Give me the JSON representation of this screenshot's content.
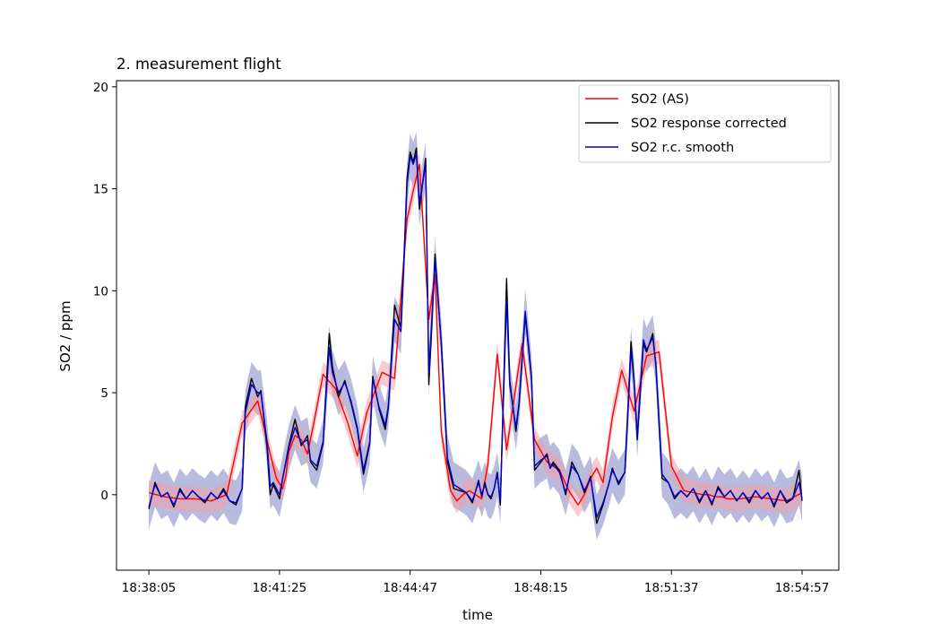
{
  "chart_data": {
    "type": "line",
    "title": "2. measurement flight",
    "xlabel": "time",
    "ylabel": "SO2 / ppm",
    "x_ticks": [
      "18:38:05",
      "18:41:25",
      "18:44:47",
      "18:48:15",
      "18:51:37",
      "18:54:57"
    ],
    "y_ticks": [
      0,
      5,
      10,
      15,
      20
    ],
    "xlim": [
      -52,
      1109
    ],
    "ylim": [
      -3.7,
      20.3
    ],
    "x_unit": "seconds after 18:38:05",
    "x_range_data": [
      0,
      1050
    ],
    "legend_position": "top-right",
    "grid": false,
    "series": [
      {
        "name": "SO2 (AS)",
        "color": "#ff0000",
        "band_color": "#f0a0a8",
        "band_halfwidth": 0.6,
        "x": [
          0,
          25,
          50,
          75,
          100,
          125,
          150,
          175,
          195,
          205,
          215,
          220,
          225,
          235,
          245,
          255,
          265,
          280,
          300,
          320,
          335,
          350,
          375,
          395,
          415,
          425,
          435,
          450,
          460,
          470,
          485,
          495,
          505,
          515,
          525,
          535,
          545,
          560,
          575,
          600,
          620,
          640,
          660,
          675,
          690,
          700,
          710,
          720,
          730,
          745,
          760,
          780,
          800,
          820,
          840,
          860,
          875,
          890,
          900,
          910,
          920,
          930,
          950,
          975,
          1000,
          1025,
          1050
        ],
        "values": [
          0.1,
          -0.1,
          -0.2,
          -0.2,
          -0.3,
          0.0,
          3.5,
          4.6,
          2.0,
          0.8,
          0.3,
          0.9,
          2.1,
          2.9,
          2.7,
          2.0,
          3.5,
          5.9,
          5.2,
          3.5,
          1.9,
          4.0,
          6.0,
          5.7,
          13.5,
          14.9,
          16.2,
          8.6,
          10.8,
          3.1,
          0.2,
          -0.3,
          0.0,
          0.2,
          0.0,
          -0.2,
          1.5,
          6.9,
          2.2,
          7.4,
          2.7,
          1.6,
          1.2,
          0.2,
          -0.5,
          0.0,
          0.8,
          1.3,
          0.6,
          3.8,
          6.1,
          4.1,
          6.8,
          7.0,
          1.4,
          0.2,
          0.1,
          0.0,
          0.0,
          -0.1,
          -0.1,
          -0.2,
          -0.2,
          -0.1,
          -0.2,
          -0.3,
          0.1
        ]
      },
      {
        "name": "SO2 response corrected",
        "color": "#000000",
        "x": [
          0,
          10,
          20,
          30,
          40,
          50,
          60,
          70,
          80,
          90,
          100,
          110,
          120,
          130,
          140,
          150,
          155,
          165,
          175,
          180,
          190,
          195,
          200,
          210,
          215,
          225,
          235,
          245,
          255,
          260,
          270,
          280,
          290,
          295,
          305,
          315,
          325,
          335,
          345,
          355,
          360,
          370,
          380,
          385,
          395,
          405,
          410,
          415,
          420,
          425,
          430,
          435,
          445,
          450,
          455,
          460,
          470,
          480,
          490,
          500,
          510,
          520,
          530,
          535,
          540,
          545,
          550,
          555,
          560,
          565,
          575,
          580,
          590,
          595,
          605,
          615,
          620,
          630,
          640,
          645,
          650,
          660,
          670,
          680,
          690,
          700,
          710,
          720,
          730,
          740,
          745,
          755,
          765,
          770,
          775,
          780,
          785,
          795,
          800,
          810,
          815,
          825,
          835,
          845,
          855,
          865,
          875,
          885,
          895,
          905,
          915,
          925,
          935,
          945,
          955,
          965,
          975,
          985,
          995,
          1005,
          1015,
          1025,
          1035,
          1045,
          1050
        ],
        "values": [
          -0.7,
          0.6,
          -0.1,
          0.1,
          -0.6,
          0.3,
          -0.2,
          0.2,
          -0.1,
          -0.4,
          0.1,
          -0.2,
          0.3,
          -0.3,
          -0.5,
          0.3,
          4.3,
          5.7,
          4.8,
          5.1,
          2.3,
          0.0,
          0.5,
          -0.2,
          0.8,
          2.4,
          3.7,
          2.4,
          2.9,
          1.6,
          1.2,
          2.5,
          7.9,
          6.3,
          4.8,
          5.6,
          4.5,
          3.2,
          1.0,
          2.5,
          5.8,
          4.2,
          3.2,
          4.3,
          9.3,
          8.2,
          11.5,
          15.5,
          16.8,
          16.3,
          17.0,
          14.0,
          16.5,
          5.4,
          8.4,
          11.8,
          7.4,
          1.6,
          0.3,
          0.2,
          0.1,
          -0.4,
          0.7,
          -0.1,
          0.6,
          0.0,
          -0.2,
          0.3,
          1.1,
          -0.5,
          10.6,
          5.6,
          3.1,
          4.4,
          8.8,
          5.7,
          1.2,
          1.6,
          2.0,
          1.3,
          1.6,
          1.2,
          0.0,
          1.6,
          1.0,
          0.1,
          0.9,
          -1.4,
          -0.5,
          0.6,
          1.3,
          0.5,
          1.1,
          4.2,
          7.5,
          5.6,
          2.7,
          7.4,
          7.0,
          7.9,
          6.3,
          0.8,
          0.6,
          -0.2,
          0.2,
          -0.1,
          0.3,
          -0.4,
          0.2,
          -0.5,
          0.4,
          -0.1,
          0.2,
          -0.3,
          0.1,
          -0.4,
          0.2,
          -0.2,
          0.1,
          -0.6,
          0.2,
          -0.4,
          -0.2,
          1.2,
          -0.3
        ]
      },
      {
        "name": "SO2 r.c. smooth",
        "color": "#0000cc",
        "band_color": "#8c91c8",
        "band_halfwidth": 1.1,
        "x": [
          0,
          10,
          20,
          30,
          40,
          50,
          60,
          70,
          80,
          90,
          100,
          110,
          120,
          130,
          140,
          150,
          155,
          165,
          175,
          180,
          190,
          195,
          200,
          210,
          215,
          225,
          235,
          245,
          255,
          260,
          270,
          280,
          290,
          295,
          305,
          315,
          325,
          335,
          345,
          355,
          360,
          370,
          380,
          385,
          395,
          405,
          410,
          415,
          420,
          425,
          430,
          435,
          445,
          450,
          455,
          460,
          470,
          480,
          490,
          500,
          510,
          520,
          530,
          535,
          540,
          545,
          550,
          555,
          560,
          565,
          575,
          580,
          590,
          595,
          605,
          615,
          620,
          630,
          640,
          645,
          650,
          660,
          670,
          680,
          690,
          700,
          710,
          720,
          730,
          740,
          745,
          755,
          765,
          770,
          775,
          780,
          785,
          795,
          800,
          810,
          815,
          825,
          835,
          845,
          855,
          865,
          875,
          885,
          895,
          905,
          915,
          925,
          935,
          945,
          955,
          965,
          975,
          985,
          995,
          1005,
          1015,
          1025,
          1035,
          1045,
          1050
        ],
        "values": [
          -0.6,
          0.5,
          -0.1,
          0.1,
          -0.5,
          0.2,
          -0.2,
          0.2,
          -0.1,
          -0.3,
          0.1,
          -0.2,
          0.2,
          -0.3,
          -0.4,
          0.3,
          4.0,
          5.4,
          5.0,
          5.0,
          2.6,
          0.4,
          0.6,
          0.0,
          0.8,
          2.3,
          3.3,
          2.5,
          2.7,
          1.7,
          1.4,
          2.6,
          7.2,
          6.0,
          5.0,
          5.5,
          4.6,
          3.3,
          1.2,
          2.6,
          5.7,
          4.3,
          3.4,
          4.4,
          8.6,
          8.0,
          11.3,
          15.2,
          16.6,
          16.2,
          16.7,
          14.3,
          16.2,
          6.0,
          8.7,
          11.5,
          7.5,
          1.8,
          0.5,
          0.3,
          0.1,
          -0.3,
          0.6,
          0.0,
          0.5,
          0.0,
          -0.1,
          0.3,
          1.0,
          -0.3,
          9.6,
          5.4,
          3.3,
          4.5,
          9.0,
          5.8,
          1.4,
          1.7,
          1.9,
          1.3,
          1.5,
          1.1,
          0.1,
          1.4,
          1.0,
          0.2,
          0.8,
          -1.1,
          -0.4,
          0.6,
          1.2,
          0.6,
          1.1,
          4.0,
          7.1,
          5.5,
          2.9,
          7.6,
          7.1,
          7.7,
          6.4,
          1.0,
          0.6,
          -0.1,
          0.2,
          -0.1,
          0.3,
          -0.3,
          0.2,
          -0.4,
          0.3,
          -0.1,
          0.2,
          -0.3,
          0.1,
          -0.3,
          0.2,
          -0.2,
          0.1,
          -0.5,
          0.2,
          -0.3,
          -0.2,
          0.6,
          -0.2
        ]
      }
    ]
  }
}
